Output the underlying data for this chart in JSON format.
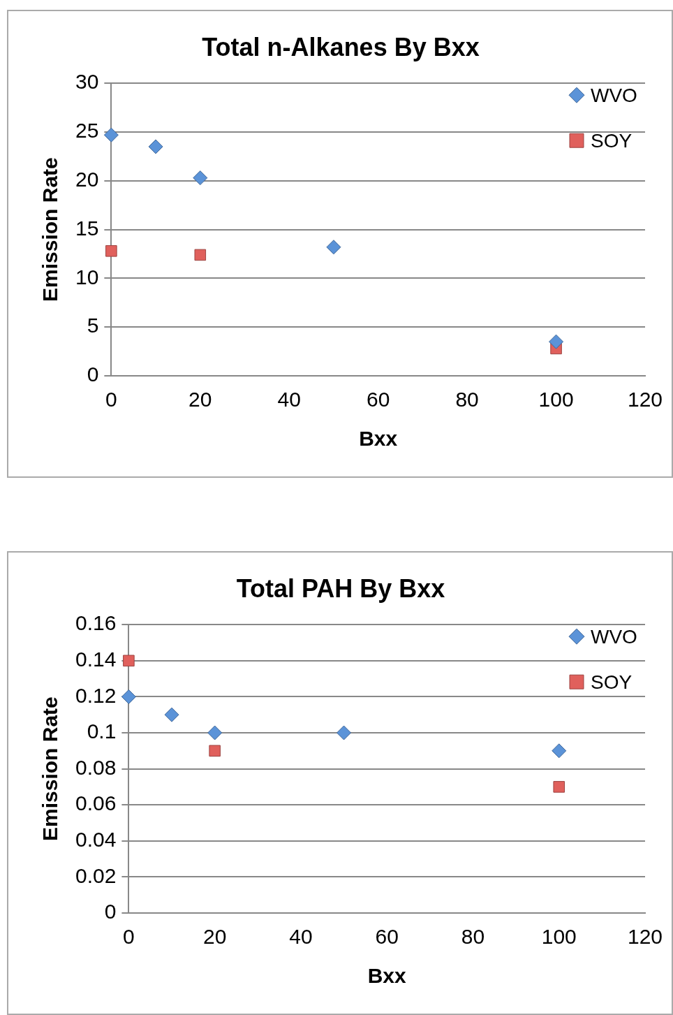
{
  "chart_data": [
    {
      "type": "scatter",
      "title": "Total n-Alkanes By Bxx",
      "xlabel": "Bxx",
      "ylabel": "Emission Rate",
      "xlim": [
        0,
        120
      ],
      "xticks": [
        0,
        20,
        40,
        60,
        80,
        100,
        120
      ],
      "ylim": [
        0,
        30
      ],
      "yticks": [
        0,
        5,
        10,
        15,
        20,
        25,
        30
      ],
      "grid": "y",
      "legend": "top right",
      "series": [
        {
          "name": "WVO",
          "color": "#5b93d8",
          "marker": "diamond",
          "x": [
            0,
            10,
            20,
            50,
            100
          ],
          "values": [
            24.7,
            23.5,
            20.3,
            13.2,
            3.5
          ]
        },
        {
          "name": "SOY",
          "color": "#e0605c",
          "marker": "square",
          "x": [
            0,
            20,
            100
          ],
          "values": [
            12.8,
            12.4,
            2.8
          ]
        }
      ]
    },
    {
      "type": "scatter",
      "title": "Total PAH By Bxx",
      "xlabel": "Bxx",
      "ylabel": "Emission Rate",
      "xlim": [
        0,
        120
      ],
      "xticks": [
        0,
        20,
        40,
        60,
        80,
        100,
        120
      ],
      "ylim": [
        0,
        0.16
      ],
      "yticks": [
        0,
        0.02,
        0.04,
        0.06,
        0.08,
        0.1,
        0.12,
        0.14,
        0.16
      ],
      "grid": "y",
      "legend": "top right",
      "series": [
        {
          "name": "WVO",
          "color": "#5b93d8",
          "marker": "diamond",
          "x": [
            0,
            10,
            20,
            50,
            100
          ],
          "values": [
            0.12,
            0.11,
            0.1,
            0.1,
            0.09
          ]
        },
        {
          "name": "SOY",
          "color": "#e0605c",
          "marker": "square",
          "x": [
            0,
            20,
            100
          ],
          "values": [
            0.14,
            0.09,
            0.07
          ]
        }
      ]
    }
  ]
}
